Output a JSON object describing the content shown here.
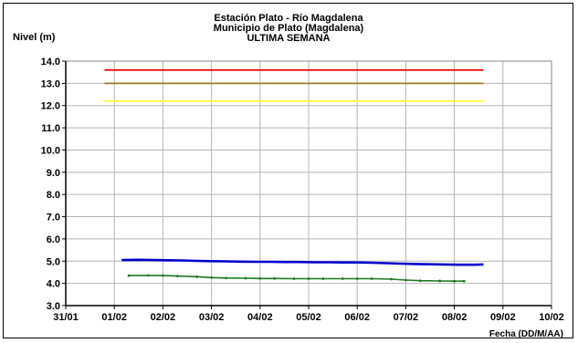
{
  "chart_data": {
    "type": "line",
    "title_lines": [
      "Estación Plato - Río Magdalena",
      "Municipio de Plato (Magdalena)",
      "ULTIMA SEMANA"
    ],
    "ylabel": "Nivel (m)",
    "xlabel": "Fecha (DD/M/AA)",
    "xlim": [
      0,
      10
    ],
    "ylim": [
      3.0,
      14.0
    ],
    "x_ticks": [
      "31/01",
      "01/02",
      "02/02",
      "03/02",
      "04/02",
      "05/02",
      "06/02",
      "07/02",
      "08/02",
      "09/02",
      "10/02"
    ],
    "y_ticks": [
      "3.0",
      "4.0",
      "5.0",
      "6.0",
      "7.0",
      "8.0",
      "9.0",
      "10.0",
      "11.0",
      "12.0",
      "13.0",
      "14.0"
    ],
    "grid": true,
    "legend": "none",
    "thresholds": [
      {
        "value": 13.6,
        "x_range": [
          0.8,
          8.6
        ],
        "color": "#e60000"
      },
      {
        "value": 13.0,
        "x_range": [
          0.8,
          8.6
        ],
        "color": "#9c7a2a"
      },
      {
        "value": 12.2,
        "x_range": [
          0.8,
          8.6
        ],
        "color": "#ffff33"
      }
    ],
    "series": [
      {
        "color": "#0000cc",
        "x": [
          1.15,
          1.5,
          1.8,
          2.1,
          2.4,
          2.7,
          3.0,
          3.3,
          3.6,
          3.9,
          4.2,
          4.5,
          4.8,
          5.1,
          5.4,
          5.7,
          6.0,
          6.3,
          6.6,
          6.9,
          7.2,
          7.5,
          7.8,
          8.1,
          8.4,
          8.6
        ],
        "values": [
          5.05,
          5.06,
          5.05,
          5.04,
          5.03,
          5.01,
          5.0,
          4.99,
          4.98,
          4.97,
          4.97,
          4.96,
          4.96,
          4.95,
          4.95,
          4.94,
          4.94,
          4.93,
          4.91,
          4.89,
          4.87,
          4.86,
          4.85,
          4.84,
          4.84,
          4.85
        ]
      },
      {
        "color": "#1e7a1e",
        "x": [
          1.3,
          1.7,
          2.0,
          2.3,
          2.7,
          3.0,
          3.3,
          3.7,
          4.0,
          4.3,
          4.7,
          5.0,
          5.3,
          5.7,
          6.0,
          6.3,
          6.7,
          7.0,
          7.3,
          7.7,
          8.0,
          8.2
        ],
        "values": [
          4.35,
          4.36,
          4.35,
          4.33,
          4.3,
          4.26,
          4.24,
          4.23,
          4.22,
          4.22,
          4.21,
          4.21,
          4.21,
          4.21,
          4.21,
          4.21,
          4.19,
          4.15,
          4.12,
          4.11,
          4.1,
          4.1
        ]
      }
    ]
  }
}
